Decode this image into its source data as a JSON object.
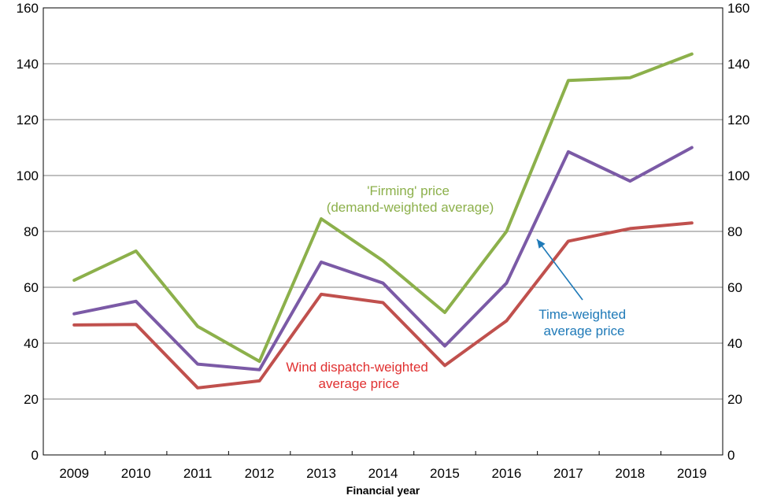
{
  "chart_data": {
    "type": "line",
    "title": "",
    "xlabel": "Financial year",
    "ylabel": "",
    "categories": [
      "2009",
      "2010",
      "2011",
      "2012",
      "2013",
      "2014",
      "2015",
      "2016",
      "2017",
      "2018",
      "2019"
    ],
    "ylim": [
      0,
      160
    ],
    "yticks": [
      "0",
      "20",
      "40",
      "60",
      "80",
      "100",
      "120",
      "140",
      "160"
    ],
    "grid": true,
    "series": [
      {
        "key": "firming",
        "color": "#8cb04b",
        "values": [
          62.5,
          73,
          46,
          33.5,
          84.5,
          69.5,
          51,
          80,
          134,
          135,
          143.5
        ]
      },
      {
        "key": "time",
        "color": "#7b5aa6",
        "values": [
          50.5,
          55,
          32.5,
          30.5,
          69,
          61.5,
          39,
          61.5,
          108.5,
          98,
          110
        ]
      },
      {
        "key": "wind",
        "color": "#c0504d",
        "values": [
          46.5,
          46.7,
          24,
          26.5,
          57.5,
          54.5,
          32,
          48,
          76.5,
          81,
          83
        ]
      }
    ],
    "annotations": [
      {
        "key": "firming",
        "lines": [
          "'Firming' price",
          "(demand-weighted average)"
        ],
        "color": "#8cb04b"
      },
      {
        "key": "time",
        "lines": [
          "Time-weighted",
          "average price"
        ],
        "color": "#1f7ab8"
      },
      {
        "key": "wind",
        "lines": [
          "Wind dispatch-weighted",
          "average price"
        ],
        "color": "#e03030"
      }
    ]
  }
}
